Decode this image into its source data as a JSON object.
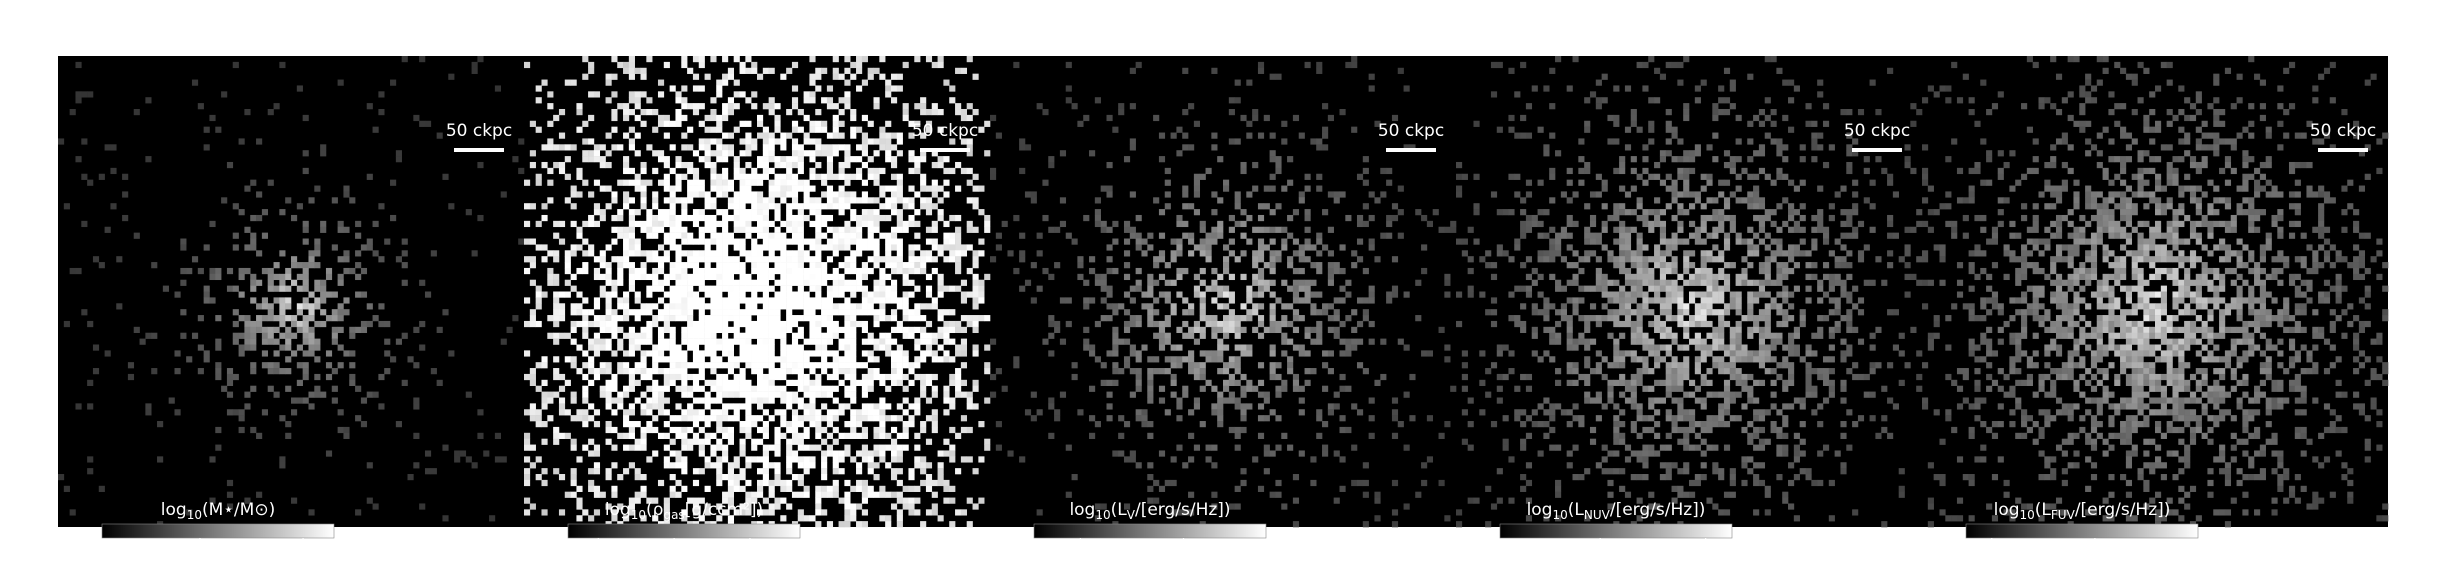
{
  "panels": [
    {
      "scale_bar": "50 ckpc",
      "colorbar": {
        "label": [
          "log",
          "10",
          "(M⋆/M⊙)"
        ],
        "lim": [
          6.1,
          10.6
        ],
        "ticks": [
          8,
          10
        ]
      }
    },
    {
      "scale_bar": "50 ckpc",
      "colorbar": {
        "label": [
          "log",
          "10",
          "(ρ",
          "gas",
          "[g/ccm²])"
        ],
        "lim": [
          -17,
          -1.7
        ],
        "ticks": [
          -15,
          -10,
          -5
        ]
      }
    },
    {
      "scale_bar": "50 ckpc",
      "colorbar": {
        "label": [
          "log",
          "10",
          "(L",
          "V",
          "/[erg/s/Hz])"
        ],
        "lim": [
          25.1,
          29.6
        ],
        "ticks": [
          26,
          28
        ]
      }
    },
    {
      "scale_bar": "50 ckpc",
      "colorbar": {
        "label": [
          "log",
          "10",
          "(L",
          "NUV",
          "/[erg/s/Hz])"
        ],
        "lim": [
          24.1,
          28.5
        ],
        "ticks": [
          26,
          28
        ]
      }
    },
    {
      "scale_bar": "50 ckpc",
      "colorbar": {
        "label": [
          "log",
          "10",
          "(L",
          "FUV",
          "/[erg/s/Hz])"
        ],
        "lim": [
          23.5,
          28.0
        ],
        "ticks": [
          24,
          26
        ]
      }
    }
  ]
}
